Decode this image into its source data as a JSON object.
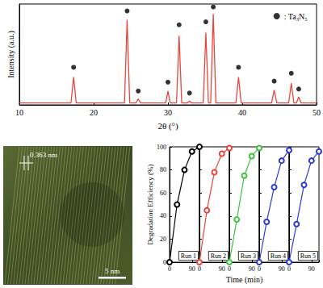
{
  "chart_data": [
    {
      "type": "line",
      "x_label": "2θ (°)",
      "y_label": "Intensity (a.u.)",
      "xlim": [
        10,
        50
      ],
      "xticks": [
        10,
        20,
        30,
        40,
        50
      ],
      "ylim": [
        0,
        102
      ],
      "grid": false,
      "tick_labels": "x",
      "legend": "upper right",
      "series": [
        {
          "color": "#e8453c",
          "x": [
            10,
            16.95,
            17.3,
            17.65,
            24.15,
            24.5,
            24.85,
            25.7,
            26.0,
            26.3,
            29.7,
            30.0,
            30.3,
            31.15,
            31.5,
            31.85,
            32.65,
            32.9,
            33.15,
            34.75,
            35.1,
            35.45,
            35.75,
            36.1,
            36.45,
            39.15,
            39.5,
            39.85,
            43.95,
            44.3,
            44.65,
            46.25,
            46.6,
            46.95,
            47.3,
            47.6,
            47.9,
            50
          ],
          "values": [
            2,
            2,
            28,
            2,
            2,
            86,
            2,
            2,
            6,
            2,
            2,
            14,
            2,
            2,
            70,
            2,
            2,
            4,
            2,
            2,
            73,
            2,
            2,
            92,
            2,
            2,
            28,
            2,
            2,
            15,
            2,
            2,
            22,
            2,
            2,
            8,
            2,
            2
          ]
        },
        {
          "name": ": Ta₃N₅",
          "type": "scatter",
          "marker": "circle",
          "color": "#000000",
          "x": [
            17.3,
            24.5,
            26.0,
            30.0,
            31.5,
            32.9,
            35.1,
            36.1,
            39.5,
            44.3,
            46.6,
            47.6
          ],
          "values": [
            38,
            95,
            14,
            23,
            81,
            12,
            84,
            99,
            38,
            24,
            32,
            16
          ]
        }
      ]
    },
    {
      "type": "line",
      "x_label": "Time (min)",
      "y_label": "Degradation Efficiency (%)",
      "xlim": [
        0,
        120
      ],
      "xticks": [
        0,
        90
      ],
      "ylim": [
        0,
        100
      ],
      "yticks": [
        0,
        20,
        40,
        60,
        80,
        100
      ],
      "grid": false,
      "marker": "open_circle",
      "series": [
        {
          "name": "Run 1",
          "color": "#000000",
          "x": [
            0,
            30,
            60,
            90,
            120
          ],
          "values": [
            0,
            50,
            80,
            96,
            100
          ]
        },
        {
          "name": "Run 2",
          "color": "#e8453c",
          "x": [
            0,
            30,
            60,
            90,
            120
          ],
          "values": [
            0,
            45,
            78,
            94,
            99
          ]
        },
        {
          "name": "Run 3",
          "color": "#3cc43c",
          "x": [
            0,
            30,
            60,
            90,
            120
          ],
          "values": [
            0,
            37,
            75,
            92,
            99
          ]
        },
        {
          "name": "Run 4",
          "color": "#2a3ad0",
          "x": [
            0,
            30,
            60,
            90,
            120
          ],
          "values": [
            0,
            35,
            65,
            88,
            97
          ]
        },
        {
          "name": "Run 5",
          "color": "#2a3ad0",
          "x": [
            0,
            30,
            60,
            90,
            120
          ],
          "values": [
            0,
            33,
            67,
            88,
            96
          ]
        }
      ]
    }
  ],
  "tem_image": {
    "lattice_spacing_label": "0.363 nm",
    "scale_bar_label": "5 nm"
  }
}
